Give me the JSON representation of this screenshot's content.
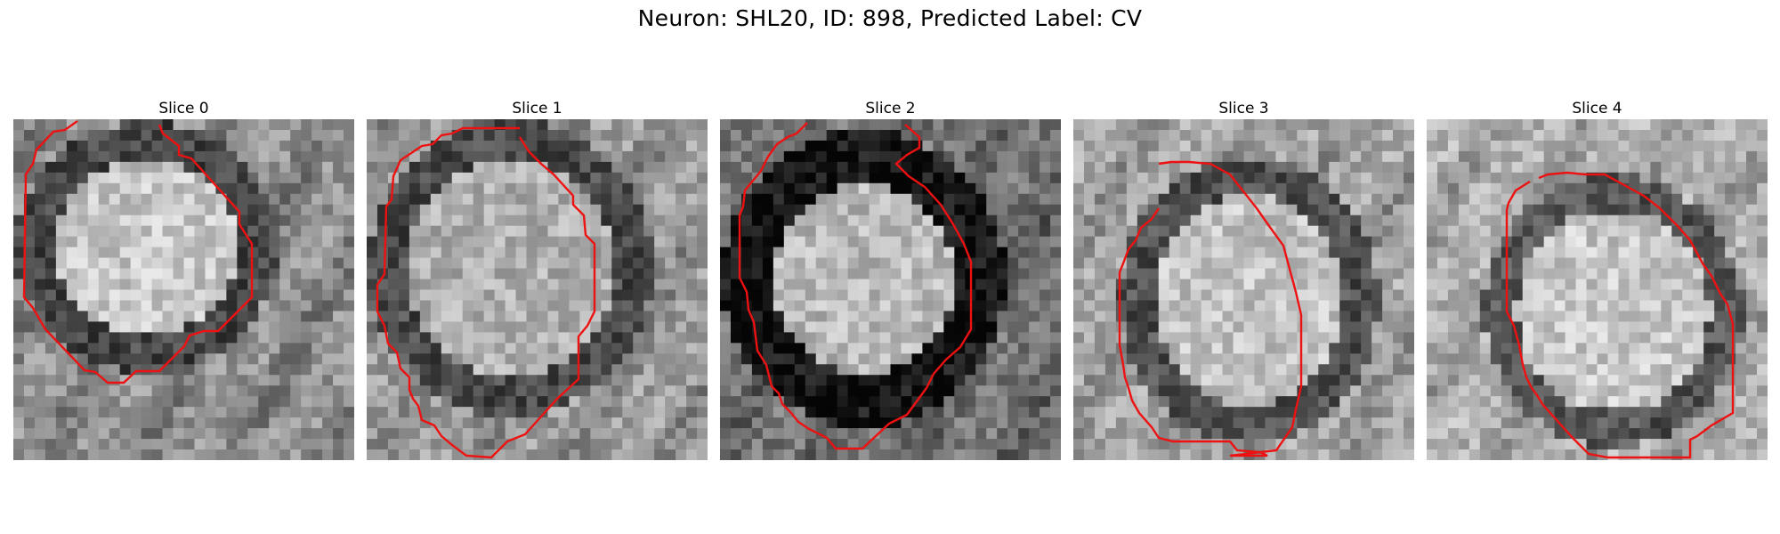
{
  "figure": {
    "title": "Neuron: SHL20, ID: 898, Predicted Label: CV"
  },
  "panels": [
    {
      "title": "Slice 0",
      "tone": "light-center"
    },
    {
      "title": "Slice 1",
      "tone": "mid-center"
    },
    {
      "title": "Slice 2",
      "tone": "dark-ring"
    },
    {
      "title": "Slice 3",
      "tone": "light-center"
    },
    {
      "title": "Slice 4",
      "tone": "light-center"
    }
  ],
  "colors": {
    "contour": "#ee1111",
    "background": "#ffffff"
  }
}
